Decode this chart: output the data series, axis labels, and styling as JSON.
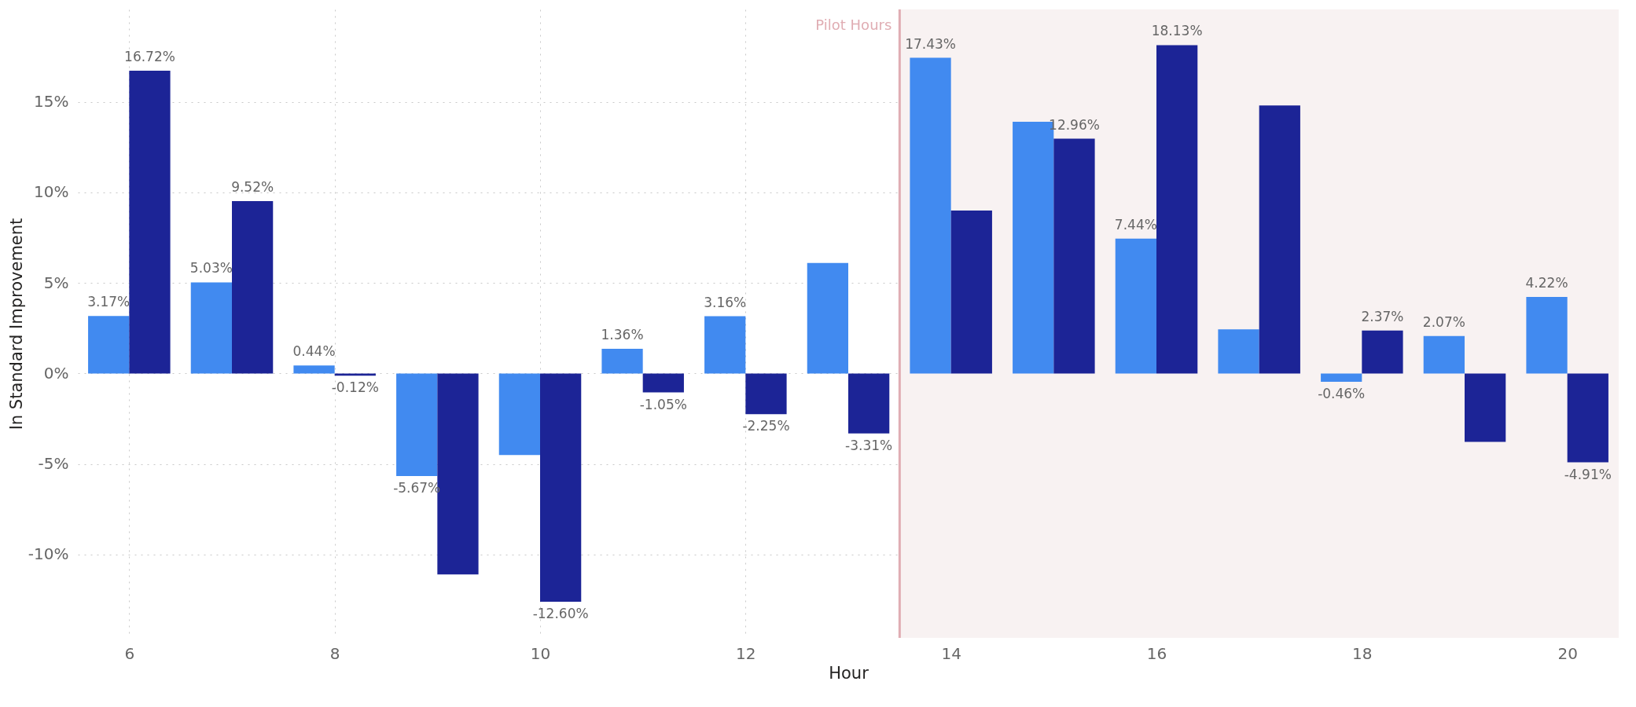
{
  "chart_data": {
    "type": "bar",
    "xlabel": "Hour",
    "ylabel": "In Standard Improvement",
    "x": [
      6,
      7,
      8,
      9,
      10,
      11,
      12,
      13,
      14,
      15,
      16,
      17,
      18,
      19,
      20
    ],
    "series": [
      {
        "color": "#418af0",
        "values": [
          3.17,
          5.03,
          0.44,
          -5.67,
          -4.5,
          1.36,
          3.16,
          6.1,
          17.43,
          13.9,
          7.44,
          2.44,
          -0.46,
          2.07,
          4.22
        ],
        "value_labels": [
          "3.17%",
          "5.03%",
          "0.44%",
          "-5.67%",
          null,
          "1.36%",
          "3.16%",
          null,
          "17.43%",
          null,
          "7.44%",
          null,
          "-0.46%",
          "2.07%",
          "4.22%"
        ]
      },
      {
        "color": "#1c2496",
        "values": [
          16.72,
          9.52,
          -0.12,
          -11.1,
          -12.6,
          -1.05,
          -2.25,
          -3.31,
          9.0,
          12.96,
          18.13,
          14.8,
          2.37,
          -3.78,
          -4.91
        ],
        "value_labels": [
          "16.72%",
          "9.52%",
          "-0.12%",
          null,
          "-12.60%",
          "-1.05%",
          "-2.25%",
          "-3.31%",
          null,
          "12.96%",
          "18.13%",
          null,
          "2.37%",
          null,
          "-4.91%"
        ]
      }
    ],
    "xlim": [
      5.5,
      20.5
    ],
    "xticks": [
      6,
      8,
      10,
      12,
      14,
      16,
      18,
      20
    ],
    "ylim": [
      -14.6,
      20.1
    ],
    "yticks": [
      {
        "value": -10,
        "label": "-10%"
      },
      {
        "value": -5,
        "label": "-5%"
      },
      {
        "value": 0,
        "label": "0%"
      },
      {
        "value": 5,
        "label": "5%"
      },
      {
        "value": 10,
        "label": "10%"
      },
      {
        "value": 15,
        "label": "15%"
      }
    ],
    "ref_lines": [
      {
        "axis": "x",
        "value": 13.5,
        "label": "Pilot Hours",
        "color": "#e0adb3"
      }
    ],
    "bands": [
      {
        "axis": "x",
        "from": 13.5,
        "to": 20.5,
        "color": "#f8f2f2"
      }
    ],
    "grid": true
  }
}
